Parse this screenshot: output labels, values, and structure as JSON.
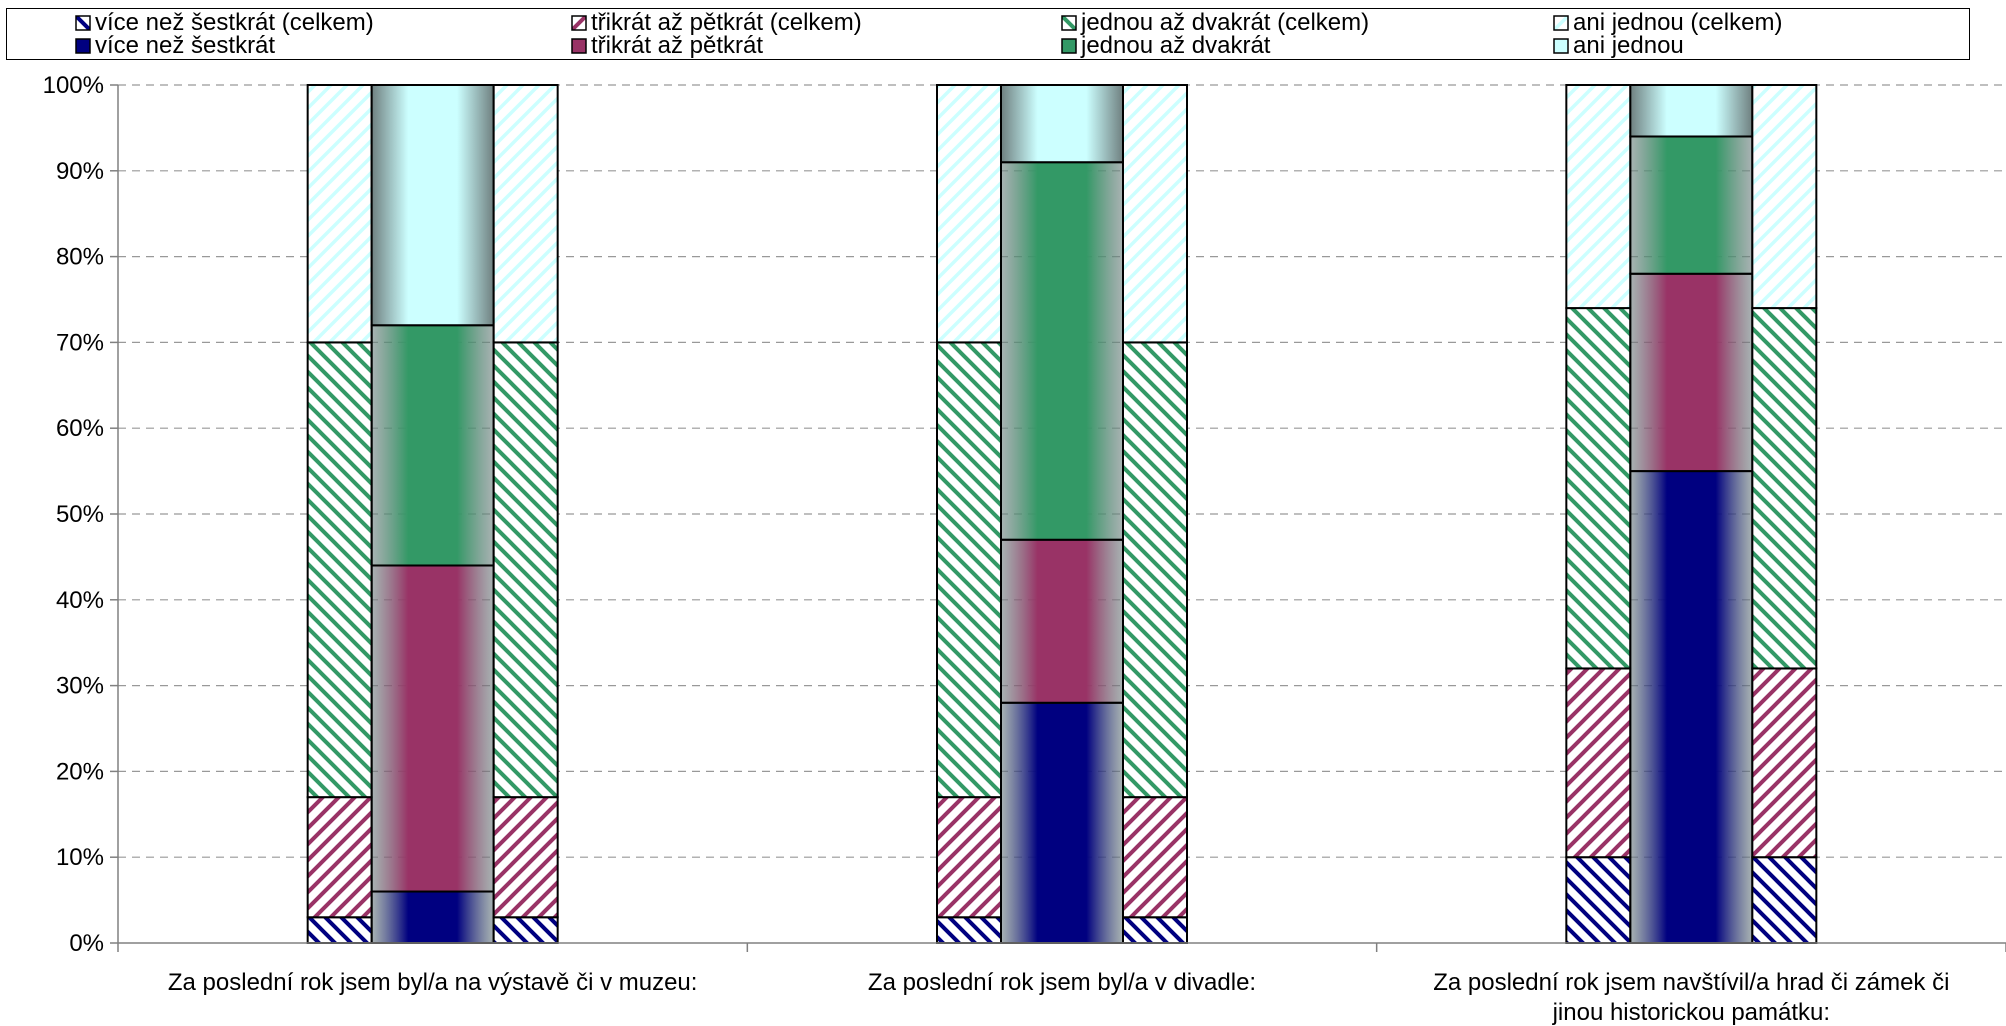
{
  "colors": {
    "navy": "#000080",
    "plum": "#993366",
    "green": "#339966",
    "cyan": "#ccffff",
    "gridline": "#999999",
    "axis": "#808080"
  },
  "chart_data": {
    "type": "bar",
    "stacked": true,
    "percent_stacked": true,
    "ylim": [
      0,
      100
    ],
    "yticks": [
      "0%",
      "10%",
      "20%",
      "30%",
      "40%",
      "50%",
      "60%",
      "70%",
      "80%",
      "90%",
      "100%"
    ],
    "grid": true,
    "legend_position": "top",
    "categories": [
      "Za poslední rok jsem byl/a na výstavě či v muzeu:",
      "Za poslední rok jsem byl/a v divadle:",
      "Za poslední rok jsem navštívil/a hrad či zámek či jinou historickou památku:"
    ],
    "category_lines": [
      [
        "Za poslední rok jsem byl/a na výstavě či v muzeu:"
      ],
      [
        "Za poslední rok jsem byl/a v divadle:"
      ],
      [
        "Za poslední rok jsem navštívil/a hrad či zámek či",
        "jinou historickou památku:"
      ]
    ],
    "series": [
      {
        "name": "více než šestkrát (celkem)",
        "group": "total",
        "color": "navy",
        "pattern": "diag-down",
        "values": [
          3,
          3,
          10
        ]
      },
      {
        "name": "třikrát až pětkrát (celkem)",
        "group": "total",
        "color": "plum",
        "pattern": "diag-up",
        "values": [
          14,
          14,
          22
        ]
      },
      {
        "name": "jednou až dvakrát (celkem)",
        "group": "total",
        "color": "green",
        "pattern": "diag-down",
        "values": [
          53,
          53,
          42
        ]
      },
      {
        "name": "ani jednou (celkem)",
        "group": "total",
        "color": "cyan",
        "pattern": "diag-up",
        "values": [
          30,
          30,
          26
        ]
      },
      {
        "name": "více než šestkrát",
        "group": "main",
        "color": "navy",
        "pattern": "solid",
        "values": [
          6,
          28,
          55
        ]
      },
      {
        "name": "třikrát až pětkrát",
        "group": "main",
        "color": "plum",
        "pattern": "solid",
        "values": [
          38,
          19,
          23
        ]
      },
      {
        "name": "jednou až dvakrát",
        "group": "main",
        "color": "green",
        "pattern": "solid",
        "values": [
          28,
          44,
          16
        ]
      },
      {
        "name": "ani jednou",
        "group": "main",
        "color": "cyan",
        "pattern": "solid",
        "values": [
          28,
          9,
          6
        ]
      }
    ]
  }
}
